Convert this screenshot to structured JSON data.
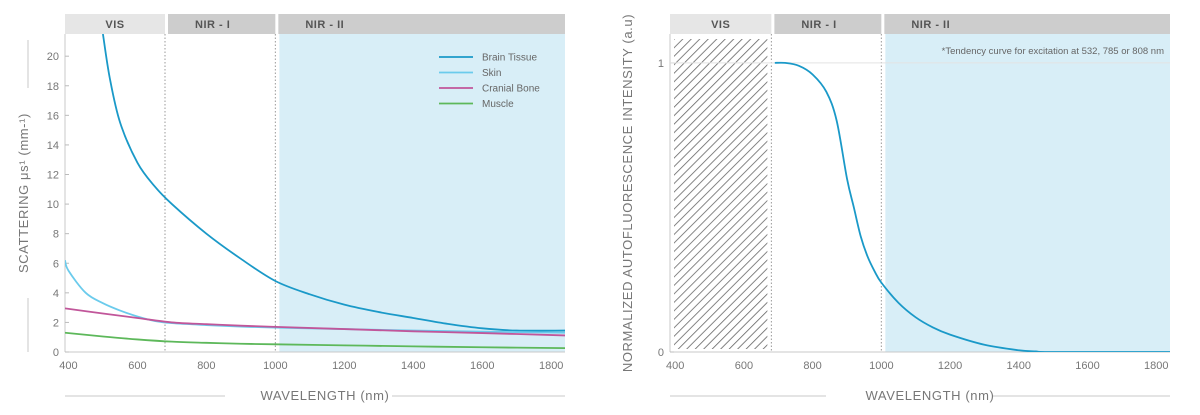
{
  "chart_data": [
    {
      "type": "line",
      "xlabel": "WAVELENGTH (nm)",
      "ylabel": "SCATTERING μs¹ (mm-¹)",
      "xlim": [
        390,
        1840
      ],
      "ylim": [
        0,
        21.5
      ],
      "x_ticks": [
        400,
        600,
        800,
        1000,
        1200,
        1400,
        1600,
        1800
      ],
      "y_ticks": [
        0,
        2,
        4,
        6,
        8,
        10,
        12,
        14,
        16,
        18,
        20
      ],
      "grid": false,
      "legend_position": "top-right",
      "bands": [
        {
          "label": "VIS",
          "from": 390,
          "to": 680,
          "color": "#e6e6e6",
          "shade": null
        },
        {
          "label": "NIR - I",
          "from": 680,
          "to": 1000,
          "color": "#cdcdcd",
          "shade": null
        },
        {
          "label": "NIR - II",
          "from": 1000,
          "to": 1840,
          "color": "#cdcdcd",
          "shade": "#d8eef7"
        }
      ],
      "series": [
        {
          "name": "Brain Tissue",
          "color": "#1a99c8",
          "x": [
            500,
            520,
            550,
            600,
            650,
            700,
            800,
            900,
            1000,
            1100,
            1200,
            1300,
            1400,
            1500,
            1600,
            1700,
            1840
          ],
          "y": [
            21.5,
            18.5,
            15.5,
            12.8,
            11.2,
            10.0,
            8.0,
            6.3,
            4.8,
            3.9,
            3.2,
            2.7,
            2.3,
            1.9,
            1.6,
            1.45,
            1.45
          ]
        },
        {
          "name": "Skin",
          "color": "#6bcbec",
          "x": [
            390,
            400,
            450,
            500,
            550,
            600,
            650,
            700,
            800,
            900,
            1000,
            1200,
            1400,
            1600,
            1840
          ],
          "y": [
            6.2,
            5.5,
            4.0,
            3.3,
            2.8,
            2.4,
            2.1,
            1.95,
            1.82,
            1.72,
            1.65,
            1.55,
            1.45,
            1.38,
            1.3
          ]
        },
        {
          "name": "Cranial Bone",
          "color": "#c1569a",
          "x": [
            390,
            500,
            600,
            700,
            800,
            900,
            1000,
            1200,
            1400,
            1600,
            1840
          ],
          "y": [
            2.95,
            2.6,
            2.3,
            2.0,
            1.88,
            1.78,
            1.7,
            1.55,
            1.4,
            1.28,
            1.12
          ]
        },
        {
          "name": "Muscle",
          "color": "#5db85a",
          "x": [
            390,
            500,
            600,
            700,
            800,
            900,
            1000,
            1200,
            1400,
            1600,
            1840
          ],
          "y": [
            1.3,
            1.05,
            0.85,
            0.7,
            0.62,
            0.56,
            0.52,
            0.45,
            0.38,
            0.32,
            0.26
          ]
        }
      ]
    },
    {
      "type": "line",
      "xlabel": "WAVELENGTH (nm)",
      "ylabel": "NORMALIZED AUTOFLUORESCENCE INTENSITY (a.u)",
      "xlim": [
        385,
        1840
      ],
      "ylim": [
        0,
        1.1
      ],
      "x_ticks": [
        400,
        600,
        800,
        1000,
        1200,
        1400,
        1600,
        1800
      ],
      "y_ticks": [
        0,
        1
      ],
      "grid": false,
      "annotation": "*Tendency curve for excitation at 532, 785 or 808 nm",
      "bands": [
        {
          "label": "VIS",
          "from": 385,
          "to": 680,
          "color": "#e6e6e6",
          "shade": "hatched"
        },
        {
          "label": "NIR - I",
          "from": 680,
          "to": 1000,
          "color": "#cdcdcd",
          "shade": null
        },
        {
          "label": "NIR - II",
          "from": 1000,
          "to": 1840,
          "color": "#cdcdcd",
          "shade": "#d8eef7"
        }
      ],
      "series": [
        {
          "color": "#1a99c8",
          "x": [
            690,
            720,
            760,
            800,
            840,
            870,
            900,
            920,
            940,
            960,
            980,
            1000,
            1050,
            1100,
            1150,
            1200,
            1300,
            1400,
            1450,
            1500,
            1840
          ],
          "y": [
            1.0,
            1.0,
            0.99,
            0.96,
            0.9,
            0.8,
            0.6,
            0.5,
            0.4,
            0.33,
            0.28,
            0.24,
            0.17,
            0.12,
            0.085,
            0.06,
            0.025,
            0.006,
            0.002,
            0.0,
            0.0
          ]
        }
      ]
    }
  ]
}
